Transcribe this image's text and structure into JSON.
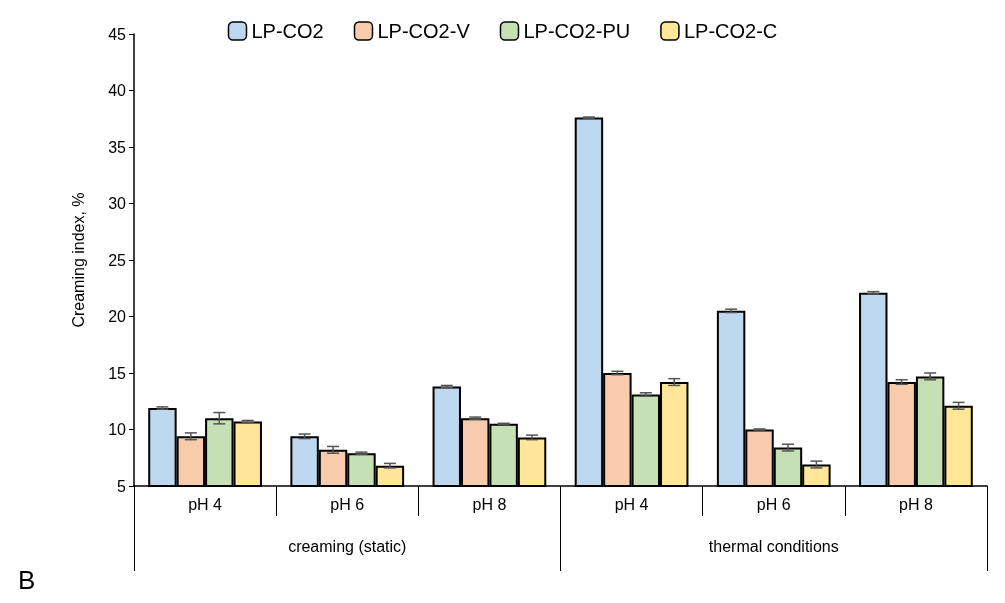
{
  "chart_data": {
    "type": "bar",
    "ylabel": "Creaming index, %",
    "categories": [
      "pH 4",
      "pH 6",
      "pH 8",
      "pH 4",
      "pH 6",
      "pH 8"
    ],
    "series": [
      {
        "name": "LP-CO2",
        "color": "#bdd7ee",
        "values": [
          11.9,
          9.4,
          13.8,
          37.6,
          20.5,
          22.1
        ],
        "errors": [
          0.1,
          0.2,
          0.1,
          0.05,
          0.15,
          0.1
        ]
      },
      {
        "name": "LP-CO2-V",
        "color": "#f8cbad",
        "values": [
          9.4,
          8.2,
          11.0,
          15.0,
          10.0,
          14.2
        ],
        "errors": [
          0.3,
          0.3,
          0.1,
          0.15,
          0.05,
          0.2
        ]
      },
      {
        "name": "LP-CO2-PU",
        "color": "#c5e0b4",
        "values": [
          11.0,
          7.9,
          10.5,
          13.1,
          8.4,
          14.7
        ],
        "errors": [
          0.5,
          0.1,
          0.05,
          0.15,
          0.3,
          0.3
        ]
      },
      {
        "name": "LP-CO2-C",
        "color": "#ffe699",
        "values": [
          10.7,
          6.8,
          9.3,
          14.2,
          6.9,
          12.1
        ],
        "errors": [
          0.1,
          0.2,
          0.2,
          0.3,
          0.3,
          0.3
        ]
      }
    ],
    "annotations": [
      "creaming (static)",
      "thermal conditions",
      "B"
    ],
    "ylim": [
      5,
      45
    ],
    "yticks": [
      5,
      10,
      15,
      20,
      25,
      30,
      35,
      40,
      45
    ],
    "grid": false,
    "legend": "top"
  }
}
